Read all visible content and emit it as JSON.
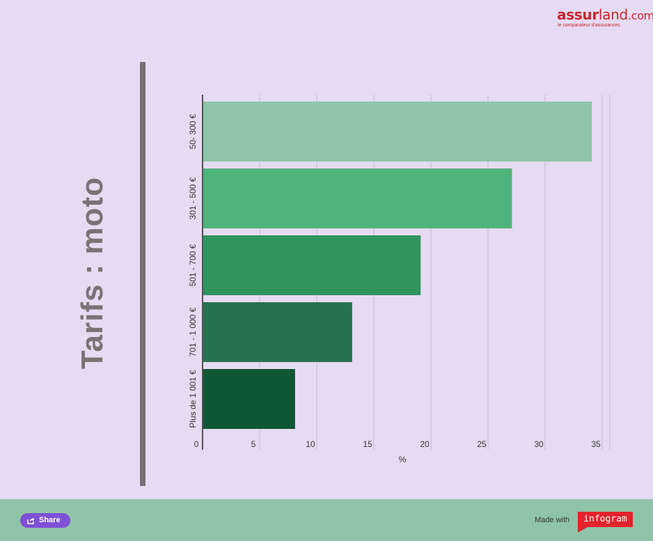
{
  "logo": {
    "part1": "assur",
    "part2": "land",
    "part3": ".com",
    "tagline": "le comparateur d'assurances"
  },
  "title": "Tarifs : moto",
  "chart_data": {
    "type": "bar",
    "orientation": "horizontal",
    "categories": [
      "50- 300 €",
      "301 - 500 €",
      "501 - 700 €",
      "701 - 1 000 €",
      "Plus de 1 001 €"
    ],
    "values": [
      34.1,
      27.1,
      19.1,
      13.1,
      8.1
    ],
    "colors": [
      "#8fc5a8",
      "#4fb47b",
      "#31945f",
      "#27734e",
      "#105834"
    ],
    "xlabel": "%",
    "ylabel": "",
    "xlim": [
      0,
      35
    ],
    "xticks": [
      0,
      5,
      10,
      15,
      20,
      25,
      30,
      35
    ],
    "grid": true
  },
  "footer": {
    "share_label": "Share",
    "made_with": "Made with",
    "infogram": "infogram"
  }
}
